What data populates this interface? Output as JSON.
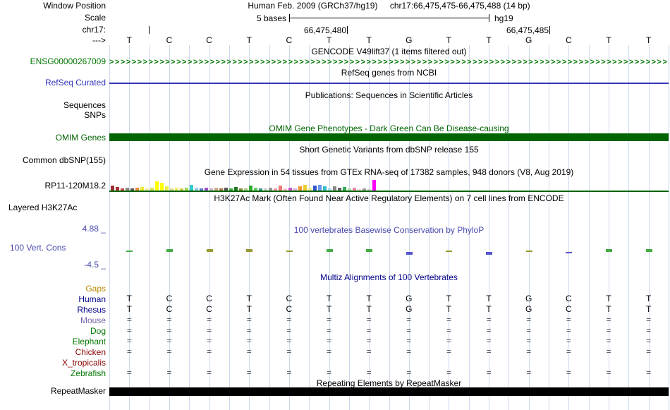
{
  "colors": {
    "guideline": "#ccd9ec"
  },
  "header": {
    "row1_label": "Window Position",
    "assembly": "Human Feb. 2009 (GRCh37/hg19)",
    "position": "chr17:66,475,475-66,475,488 (14 bp)",
    "scale_label": "Scale",
    "scale_value": "5 bases",
    "genome": "hg19",
    "chrom": "chr17:",
    "coord_left": "66,475,480",
    "coord_right": "66,475,485",
    "strand": "--->"
  },
  "ruler_bases": [
    "T",
    "C",
    "C",
    "T",
    "C",
    "T",
    "T",
    "G",
    "T",
    "T",
    "G",
    "C",
    "T",
    "T"
  ],
  "tracks": {
    "gencode": {
      "title": "GENCODE V49lift37 (1 items filtered out)",
      "label": "ENSG00000267009",
      "color": "#007700",
      "arrow_char": ">",
      "arrow_count": 130
    },
    "refseq": {
      "title": "RefSeq genes from NCBI",
      "label": "RefSeq Curated",
      "color": "#3333bb"
    },
    "publications": {
      "title": "Publications: Sequences in Scientific Articles",
      "label_sequences": "Sequences",
      "label_snps": "SNPs"
    },
    "omim": {
      "title": "OMIM Gene Phenotypes - Dark Green Can Be Disease-causing",
      "label": "OMIM Genes",
      "color": "#006400"
    },
    "dbsnp": {
      "title": "Short Genetic Variants from dbSNP release 155",
      "label": "Common dbSNP(155)"
    },
    "gtex": {
      "title": "Gene Expression in 54 tissues from GTEx RNA-seq of 17382 samples, 948 donors (V8, Aug 2019)",
      "label": "RP11-120M18.2",
      "baseline_color": "#006400"
    },
    "h3k27ac": {
      "title": "H3K27Ac Mark (Often Found Near Active Regulatory Elements) on 7 cell lines from ENCODE",
      "label": "Layered H3K27Ac"
    },
    "conservation": {
      "title": "100 vertebrates Basewise Conservation by PhyloP",
      "label": "100 Vert. Cons",
      "max": "4.88 _",
      "min": "-4.5 _",
      "color": "#4a4aae"
    },
    "multiz": {
      "title": "Multiz Alignments of 100 Vertebrates",
      "color": "#000088"
    },
    "repeatmasker": {
      "title": "Repeating Elements by RepeatMasker",
      "label": "RepeatMasker",
      "color": "#000000"
    }
  },
  "multiz_rows": [
    {
      "name": "Gaps",
      "label_color": "#bb8800",
      "cell_color": "#555555",
      "values": [
        "",
        "",
        "",
        "",
        "",
        "",
        "",
        "",
        "",
        "",
        "",
        "",
        "",
        ""
      ]
    },
    {
      "name": "Human",
      "label_color": "#000088",
      "cell_color": "#000000",
      "values": [
        "T",
        "C",
        "C",
        "T",
        "C",
        "T",
        "T",
        "G",
        "T",
        "T",
        "G",
        "C",
        "T",
        "T"
      ]
    },
    {
      "name": "Rhesus",
      "label_color": "#000088",
      "cell_color": "#000000",
      "values": [
        "T",
        "C",
        "C",
        "T",
        "C",
        "T",
        "T",
        "G",
        "T",
        "T",
        "G",
        "C",
        "T",
        "T"
      ]
    },
    {
      "name": "Mouse",
      "label_color": "#7766aa",
      "cell_color": "#555555",
      "values": [
        "=",
        "=",
        "=",
        "=",
        "=",
        "=",
        "=",
        "=",
        "=",
        "=",
        "=",
        "=",
        "=",
        "="
      ]
    },
    {
      "name": "Dog",
      "label_color": "#007700",
      "cell_color": "#555555",
      "values": [
        "=",
        "=",
        "=",
        "=",
        "=",
        "=",
        "=",
        "=",
        "=",
        "=",
        "=",
        "=",
        "=",
        "="
      ]
    },
    {
      "name": "Elephant",
      "label_color": "#007700",
      "cell_color": "#555555",
      "values": [
        "=",
        "=",
        "=",
        "=",
        "=",
        "=",
        "=",
        "=",
        "=",
        "=",
        "=",
        "=",
        "=",
        "="
      ]
    },
    {
      "name": "Chicken",
      "label_color": "#880000",
      "cell_color": "#555555",
      "values": [
        "=",
        "=",
        "=",
        "=",
        "=",
        "=",
        "=",
        "=",
        "=",
        "=",
        "=",
        "=",
        "=",
        "="
      ]
    },
    {
      "name": "X_tropicalis",
      "label_color": "#880000",
      "cell_color": "#555555",
      "values": [
        "",
        "",
        "",
        "",
        "",
        "",
        "",
        "",
        "",
        "",
        "",
        "",
        "",
        ""
      ]
    },
    {
      "name": "Zebrafish",
      "label_color": "#007700",
      "cell_color": "#555555",
      "values": [
        "=",
        "=",
        "=",
        "=",
        "=",
        "=",
        "=",
        "=",
        "=",
        "=",
        "=",
        "=",
        "=",
        "="
      ]
    }
  ],
  "gtex_bars": [
    {
      "c": "#993333",
      "h": 8
    },
    {
      "c": "#aa3333",
      "h": 6
    },
    {
      "c": "#cc4444",
      "h": 4
    },
    {
      "c": "#888888",
      "h": 5
    },
    {
      "c": "#555555",
      "h": 4
    },
    {
      "c": "#ee8833",
      "h": 5
    },
    {
      "c": "#eeee33",
      "h": 6
    },
    {
      "c": "#eeeeaa",
      "h": 4
    },
    {
      "c": "#dddd55",
      "h": 5
    },
    {
      "c": "#ffff00",
      "h": 14
    },
    {
      "c": "#ffff00",
      "h": 12
    },
    {
      "c": "#eeee44",
      "h": 7
    },
    {
      "c": "#dddd88",
      "h": 4
    },
    {
      "c": "#eeee66",
      "h": 5
    },
    {
      "c": "#cccc44",
      "h": 4
    },
    {
      "c": "#99dd55",
      "h": 5
    },
    {
      "c": "#33cccc",
      "h": 9
    },
    {
      "c": "#99ccee",
      "h": 5
    },
    {
      "c": "#5577cc",
      "h": 4
    },
    {
      "c": "#9955cc",
      "h": 5
    },
    {
      "c": "#ccaacc",
      "h": 4
    },
    {
      "c": "#ccaa88",
      "h": 5
    },
    {
      "c": "#aa7744",
      "h": 4
    },
    {
      "c": "#555555",
      "h": 5
    },
    {
      "c": "#44aa44",
      "h": 4
    },
    {
      "c": "#227722",
      "h": 6
    },
    {
      "c": "#888833",
      "h": 4
    },
    {
      "c": "#aacc88",
      "h": 4
    },
    {
      "c": "#33aa33",
      "h": 8
    },
    {
      "c": "#66cc66",
      "h": 5
    },
    {
      "c": "#339988",
      "h": 4
    },
    {
      "c": "#cccccc",
      "h": 4
    },
    {
      "c": "#999999",
      "h": 5
    },
    {
      "c": "#ee99aa",
      "h": 4
    },
    {
      "c": "#ee7777",
      "h": 8
    },
    {
      "c": "#ffbbcc",
      "h": 4
    },
    {
      "c": "#cc55cc",
      "h": 5
    },
    {
      "c": "#ddaadd",
      "h": 4
    },
    {
      "c": "#ee9933",
      "h": 7
    },
    {
      "c": "#eecc33",
      "h": 9
    },
    {
      "c": "#eeee99",
      "h": 5
    },
    {
      "c": "#3355cc",
      "h": 8
    },
    {
      "c": "#6699ee",
      "h": 9
    },
    {
      "c": "#33bbcc",
      "h": 7
    },
    {
      "c": "#aaddee",
      "h": 4
    },
    {
      "c": "#888888",
      "h": 7
    },
    {
      "c": "#666666",
      "h": 5
    },
    {
      "c": "#33aa55",
      "h": 6
    },
    {
      "c": "#aaddaa",
      "h": 4
    },
    {
      "c": "#ee88aa",
      "h": 5
    },
    {
      "c": "#ffccdd",
      "h": 3
    },
    {
      "c": "#999999",
      "h": 4
    },
    {
      "c": "#cccccc",
      "h": 3
    },
    {
      "c": "#ff00ff",
      "h": 16
    }
  ],
  "cons_marks": [
    {
      "c": "#44aa44",
      "h": 1,
      "d": "up"
    },
    {
      "c": "#44aa44",
      "h": 2,
      "d": "up"
    },
    {
      "c": "#999933",
      "h": 2,
      "d": "up"
    },
    {
      "c": "#999933",
      "h": 2,
      "d": "up"
    },
    {
      "c": "#999933",
      "h": 1,
      "d": "up"
    },
    {
      "c": "#44aa44",
      "h": 2,
      "d": "up"
    },
    {
      "c": "#44aa44",
      "h": 2,
      "d": "up"
    },
    {
      "c": "#5555cc",
      "h": 2,
      "d": "down"
    },
    {
      "c": "#999933",
      "h": 1,
      "d": "up"
    },
    {
      "c": "#5555cc",
      "h": 2,
      "d": "down"
    },
    {
      "c": "#999933",
      "h": 1,
      "d": "up"
    },
    {
      "c": "#5555cc",
      "h": 1,
      "d": "down"
    },
    {
      "c": "#44aa44",
      "h": 2,
      "d": "up"
    },
    {
      "c": "#44aa44",
      "h": 2,
      "d": "up"
    }
  ]
}
